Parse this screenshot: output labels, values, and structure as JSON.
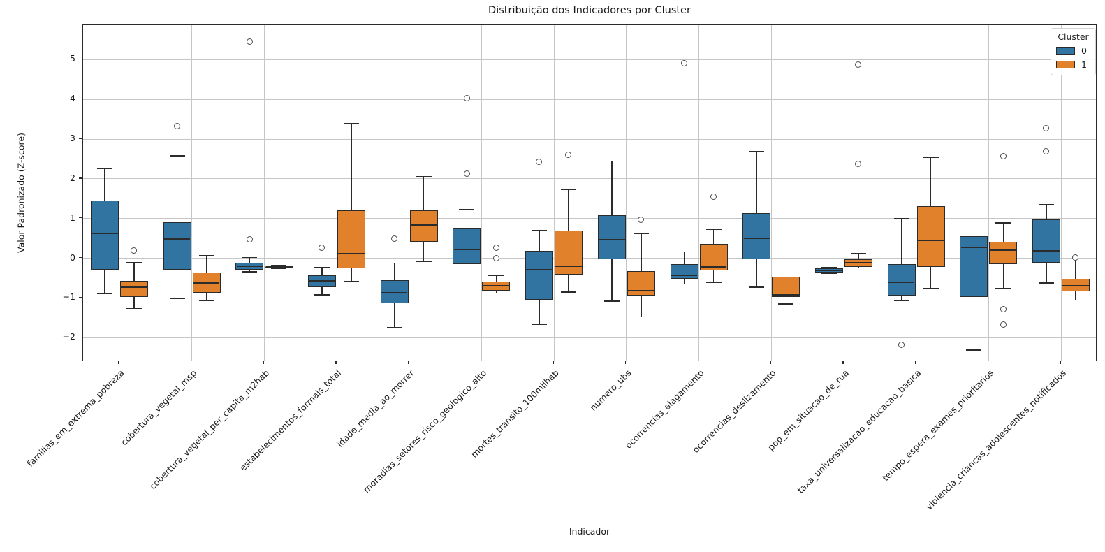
{
  "chart_data": {
    "type": "boxplot",
    "title": "Distribuição dos Indicadores por Cluster",
    "xlabel": "Indicador",
    "ylabel": "Valor Padronizado (Z-score)",
    "ylim": [
      -2.61,
      5.87
    ],
    "yticks": [
      -2,
      -1,
      0,
      1,
      2,
      3,
      4,
      5
    ],
    "grid": true,
    "legend": {
      "title": "Cluster",
      "position": "upper right"
    },
    "colors": {
      "cluster0": "#3274a1",
      "cluster1": "#e1812c",
      "edge": "#2b2b2b",
      "grid": "#c6c6c6",
      "flier_edge": "#4a4a4a"
    },
    "categories": [
      "familias_em_extrema_pobreza",
      "cobertura_vegetal_msp",
      "cobertura_vegetal_per_capita_m2hab",
      "estabelecimentos_formais_total",
      "idade_media_ao_morrer",
      "moradias_setores_risco_geologico_alto",
      "mortes_transito_100milhab",
      "numero_ubs",
      "ocorrencias_alagamento",
      "ocorrencias_deslizamento",
      "pop_em_situacao_de_rua",
      "taxa_universalizacao_educacao_basica",
      "tempo_espera_exames_prioritarios",
      "violencia_criancas_adolescentes_notificados"
    ],
    "series": [
      {
        "name": "0",
        "color_key": "cluster0",
        "boxes": [
          {
            "whislo": -0.89,
            "q1": -0.28,
            "med": 0.62,
            "q3": 1.45,
            "whishi": 2.26,
            "outliers": []
          },
          {
            "whislo": -1.02,
            "q1": -0.28,
            "med": 0.49,
            "q3": 0.9,
            "whishi": 2.58,
            "outliers": [
              3.33
            ]
          },
          {
            "whislo": -0.34,
            "q1": -0.28,
            "med": -0.2,
            "q3": -0.12,
            "whishi": 0.02,
            "outliers": [
              5.45,
              0.48
            ]
          },
          {
            "whislo": -0.92,
            "q1": -0.72,
            "med": -0.57,
            "q3": -0.43,
            "whishi": -0.23,
            "outliers": [
              0.27
            ]
          },
          {
            "whislo": -1.74,
            "q1": -1.14,
            "med": -0.87,
            "q3": -0.55,
            "whishi": -0.12,
            "outliers": [
              0.49
            ]
          },
          {
            "whislo": -0.59,
            "q1": -0.14,
            "med": 0.23,
            "q3": 0.75,
            "whishi": 1.23,
            "outliers": [
              4.03,
              2.12
            ]
          },
          {
            "whislo": -1.66,
            "q1": -1.05,
            "med": -0.29,
            "q3": 0.18,
            "whishi": 0.7,
            "outliers": [
              2.42
            ]
          },
          {
            "whislo": -1.08,
            "q1": -0.02,
            "med": 0.47,
            "q3": 1.08,
            "whishi": 2.45,
            "outliers": []
          },
          {
            "whislo": -0.65,
            "q1": -0.51,
            "med": -0.42,
            "q3": -0.15,
            "whishi": 0.16,
            "outliers": [
              4.9
            ]
          },
          {
            "whislo": -0.73,
            "q1": -0.03,
            "med": 0.5,
            "q3": 1.13,
            "whishi": 2.69,
            "outliers": []
          },
          {
            "whislo": -0.38,
            "q1": -0.36,
            "med": -0.31,
            "q3": -0.25,
            "whishi": -0.22,
            "outliers": []
          },
          {
            "whislo": -1.07,
            "q1": -0.93,
            "med": -0.6,
            "q3": -0.15,
            "whishi": 1.0,
            "outliers": [
              -2.18
            ]
          },
          {
            "whislo": -2.31,
            "q1": -0.97,
            "med": 0.28,
            "q3": 0.56,
            "whishi": 1.92,
            "outliers": []
          },
          {
            "whislo": -0.62,
            "q1": -0.12,
            "med": 0.18,
            "q3": 0.98,
            "whishi": 1.35,
            "outliers": [
              3.28,
              2.69
            ]
          }
        ]
      },
      {
        "name": "1",
        "color_key": "cluster1",
        "boxes": [
          {
            "whislo": -1.27,
            "q1": -0.98,
            "med": -0.72,
            "q3": -0.57,
            "whishi": -0.1,
            "outliers": [
              0.19
            ]
          },
          {
            "whislo": -1.06,
            "q1": -0.86,
            "med": -0.63,
            "q3": -0.35,
            "whishi": 0.07,
            "outliers": []
          },
          {
            "whislo": -0.26,
            "q1": -0.24,
            "med": -0.22,
            "q3": -0.19,
            "whishi": -0.17,
            "outliers": []
          },
          {
            "whislo": -0.58,
            "q1": -0.25,
            "med": 0.12,
            "q3": 1.21,
            "whishi": 3.4,
            "outliers": []
          },
          {
            "whislo": -0.08,
            "q1": 0.42,
            "med": 0.84,
            "q3": 1.2,
            "whishi": 2.05,
            "outliers": []
          },
          {
            "whislo": -0.88,
            "q1": -0.82,
            "med": -0.7,
            "q3": -0.58,
            "whishi": -0.43,
            "outliers": [
              0.27,
              0.0
            ]
          },
          {
            "whislo": -0.85,
            "q1": -0.41,
            "med": -0.2,
            "q3": 0.7,
            "whishi": 1.73,
            "outliers": [
              2.6
            ]
          },
          {
            "whislo": -1.48,
            "q1": -0.94,
            "med": -0.82,
            "q3": -0.33,
            "whishi": 0.62,
            "outliers": [
              0.97
            ]
          },
          {
            "whislo": -0.61,
            "q1": -0.3,
            "med": -0.22,
            "q3": 0.36,
            "whishi": 0.72,
            "outliers": [
              1.54
            ]
          },
          {
            "whislo": -1.15,
            "q1": -0.97,
            "med": -0.92,
            "q3": -0.46,
            "whishi": -0.12,
            "outliers": []
          },
          {
            "whislo": -0.24,
            "q1": -0.21,
            "med": -0.11,
            "q3": -0.02,
            "whishi": 0.12,
            "outliers": [
              4.87,
              2.38
            ]
          },
          {
            "whislo": -0.76,
            "q1": -0.22,
            "med": 0.46,
            "q3": 1.31,
            "whishi": 2.54,
            "outliers": []
          },
          {
            "whislo": -0.75,
            "q1": -0.14,
            "med": 0.2,
            "q3": 0.42,
            "whishi": 0.89,
            "outliers": [
              2.57,
              -1.29,
              -1.67
            ]
          },
          {
            "whislo": -1.05,
            "q1": -0.84,
            "med": -0.69,
            "q3": -0.51,
            "whishi": -0.02,
            "outliers": [
              0.01
            ]
          }
        ]
      }
    ]
  }
}
